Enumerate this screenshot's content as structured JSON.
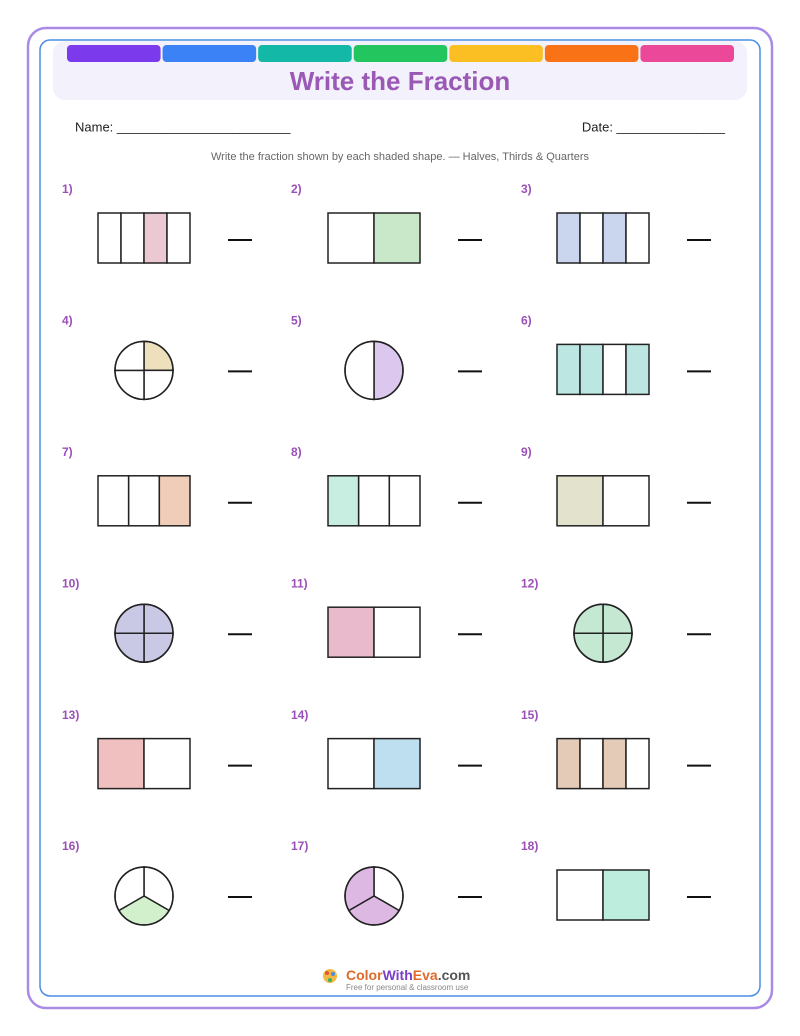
{
  "header": {
    "title": "Write the Fraction"
  },
  "fields": {
    "name": "Name: ________________________",
    "date": "Date: _______________"
  },
  "instructions": "Write the fraction shown by each shaded shape. — Halves, Thirds & Quarters",
  "problems": [
    "1)",
    "2)",
    "3)",
    "4)",
    "5)",
    "6)",
    "7)",
    "8)",
    "9)",
    "10)",
    "11)",
    "12)",
    "13)",
    "14)",
    "15)",
    "16)",
    "17)",
    "18)"
  ],
  "footer": {
    "brand": [
      "Color",
      "With",
      "Eva",
      ".com"
    ],
    "tagline": "Free for personal & classroom use"
  }
}
